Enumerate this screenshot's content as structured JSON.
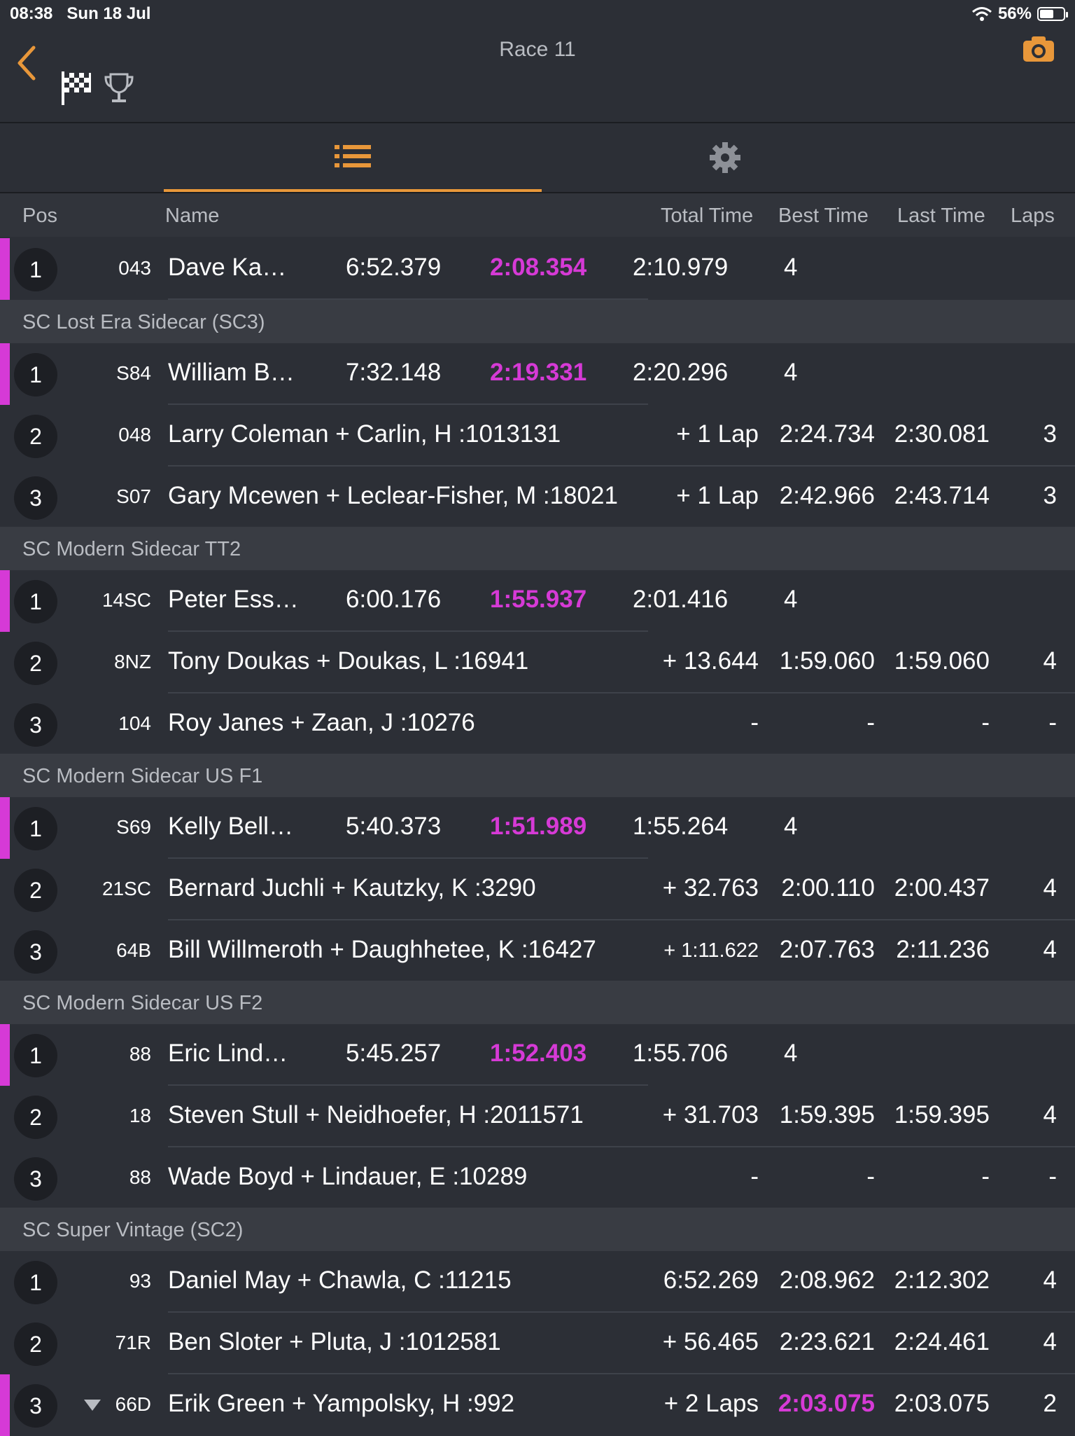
{
  "status": {
    "time": "08:38",
    "date": "Sun 18 Jul",
    "battery": "56%"
  },
  "header": {
    "title": "Race 11"
  },
  "columns": {
    "pos": "Pos",
    "name": "Name",
    "total": "Total Time",
    "best": "Best Time",
    "last": "Last Time",
    "laps": "Laps"
  },
  "colors": {
    "accent": "#e8973a",
    "best": "#d63ad6",
    "background": "#2c2f36"
  },
  "icons": {
    "back": "chevron-left-icon",
    "flag": "checkered-flag-icon",
    "trophy": "trophy-icon",
    "camera": "camera-icon",
    "list": "list-icon",
    "settings": "gear-icon"
  },
  "top": {
    "pos": "1",
    "num": "043",
    "name": "Dave Ka…",
    "total": "6:52.379",
    "best": "2:08.354",
    "last": "2:10.979",
    "laps": "4"
  },
  "groups": [
    {
      "name": "SC Lost Era Sidecar (SC3)",
      "rows": [
        {
          "pos": "1",
          "num": "S84",
          "name": "William B…",
          "total": "7:32.148",
          "best": "2:19.331",
          "last": "2:20.296",
          "laps": "4"
        },
        {
          "pos": "2",
          "num": "048",
          "name": "Larry Coleman + Carlin, H :1013131",
          "total": "+ 1 Lap",
          "best": "2:24.734",
          "last": "2:30.081",
          "laps": "3"
        },
        {
          "pos": "3",
          "num": "S07",
          "name": "Gary Mcewen + Leclear-Fisher, M :18021",
          "total": "+ 1 Lap",
          "best": "2:42.966",
          "last": "2:43.714",
          "laps": "3"
        }
      ]
    },
    {
      "name": "SC Modern Sidecar TT2",
      "rows": [
        {
          "pos": "1",
          "num": "14SC",
          "name": "Peter Ess…",
          "total": "6:00.176",
          "best": "1:55.937",
          "last": "2:01.416",
          "laps": "4"
        },
        {
          "pos": "2",
          "num": "8NZ",
          "name": "Tony Doukas + Doukas, L :16941",
          "total": "+ 13.644",
          "best": "1:59.060",
          "last": "1:59.060",
          "laps": "4"
        },
        {
          "pos": "3",
          "num": "104",
          "name": "Roy Janes + Zaan, J :10276",
          "total": "-",
          "best": "-",
          "last": "-",
          "laps": "-"
        }
      ]
    },
    {
      "name": "SC Modern Sidecar US F1",
      "rows": [
        {
          "pos": "1",
          "num": "S69",
          "name": "Kelly Bell…",
          "total": "5:40.373",
          "best": "1:51.989",
          "last": "1:55.264",
          "laps": "4"
        },
        {
          "pos": "2",
          "num": "21SC",
          "name": "Bernard Juchli + Kautzky, K :3290",
          "total": "+ 32.763",
          "best": "2:00.110",
          "last": "2:00.437",
          "laps": "4"
        },
        {
          "pos": "3",
          "num": "64B",
          "name": "Bill Willmeroth + Daughhetee, K :16427",
          "total": "+ 1:11.622",
          "best": "2:07.763",
          "last": "2:11.236",
          "laps": "4"
        }
      ]
    },
    {
      "name": "SC Modern Sidecar US F2",
      "rows": [
        {
          "pos": "1",
          "num": "88",
          "name": "Eric Lind…",
          "total": "5:45.257",
          "best": "1:52.403",
          "last": "1:55.706",
          "laps": "4"
        },
        {
          "pos": "2",
          "num": "18",
          "name": "Steven Stull + Neidhoefer, H :2011571",
          "total": "+ 31.703",
          "best": "1:59.395",
          "last": "1:59.395",
          "laps": "4"
        },
        {
          "pos": "3",
          "num": "88",
          "name": "Wade Boyd + Lindauer, E :10289",
          "total": "-",
          "best": "-",
          "last": "-",
          "laps": "-"
        }
      ]
    },
    {
      "name": "SC Super Vintage (SC2)",
      "rows": [
        {
          "pos": "1",
          "num": "93",
          "name": "Daniel May + Chawla, C :11215",
          "total": "6:52.269",
          "best": "2:08.962",
          "last": "2:12.302",
          "laps": "4"
        },
        {
          "pos": "2",
          "num": "71R",
          "name": "Ben Sloter + Pluta, J :1012581",
          "total": "+ 56.465",
          "best": "2:23.621",
          "last": "2:24.461",
          "laps": "4"
        },
        {
          "pos": "3",
          "num": "66D",
          "name": "Erik Green + Yampolsky, H :992",
          "total": "+ 2 Laps",
          "best": "2:03.075",
          "last": "2:03.075",
          "laps": "2"
        }
      ]
    }
  ]
}
